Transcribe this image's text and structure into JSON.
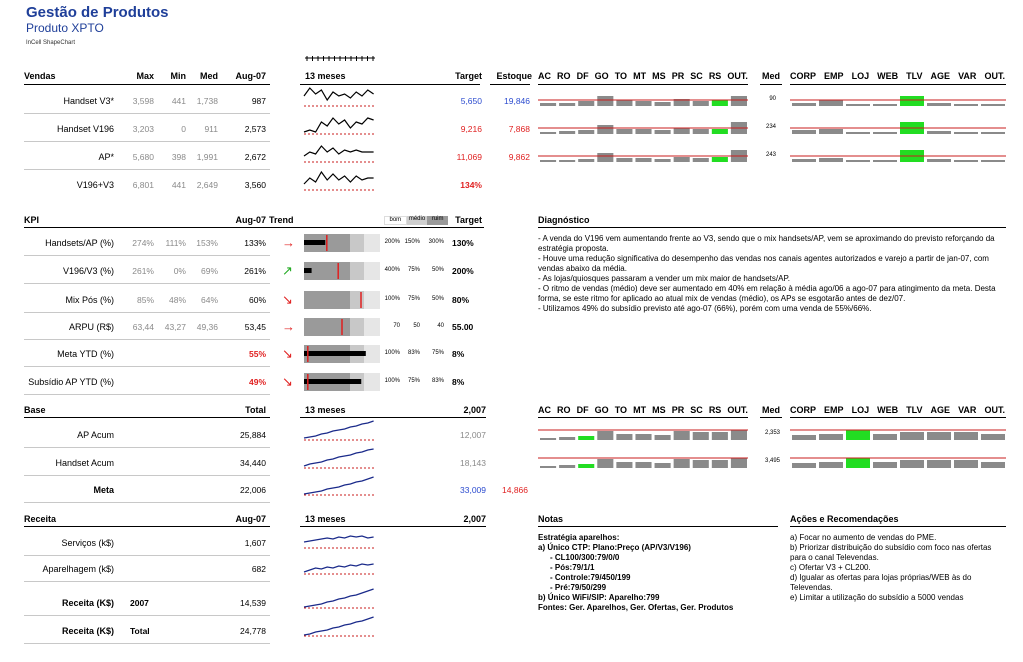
{
  "header": {
    "title": "Gestão de Produtos",
    "subtitle": "Produto XPTO",
    "small": "InCell ShapeChart"
  },
  "vendas": {
    "header": {
      "label": "Vendas",
      "max": "Max",
      "min": "Min",
      "med": "Med",
      "month": "Aug-07",
      "meses": "13 meses",
      "target": "Target",
      "estoque": "Estoque",
      "med2": "Med"
    },
    "states": [
      "AC",
      "RO",
      "DF",
      "GO",
      "TO",
      "MT",
      "MS",
      "PR",
      "SC",
      "RS",
      "OUT."
    ],
    "channels": [
      "CORP",
      "EMP",
      "LOJ",
      "WEB",
      "TLV",
      "AGE",
      "VAR",
      "OUT."
    ],
    "rows": [
      {
        "label": "Handset V3*",
        "max": "3,598",
        "min": "441",
        "med": "1,738",
        "month": "987",
        "target": "5,650",
        "estoque": "19,846",
        "med2": "90"
      },
      {
        "label": "Handset V196",
        "max": "3,203",
        "min": "0",
        "med": "911",
        "month": "2,573",
        "target": "9,216",
        "estoque": "7,868",
        "med2": "234"
      },
      {
        "label": "AP*",
        "max": "5,680",
        "min": "398",
        "med": "1,991",
        "month": "2,672",
        "target": "11,069",
        "estoque": "9,862",
        "med2": "243"
      },
      {
        "label": "V196+V3",
        "max": "6,801",
        "min": "441",
        "med": "2,649",
        "month": "3,560",
        "target": "134%",
        "estoque": "",
        "med2": ""
      }
    ]
  },
  "kpi": {
    "header": {
      "label": "KPI",
      "month": "Aug-07",
      "trend": "Trend",
      "bom": "bom",
      "medio": "médio",
      "ruim": "ruim",
      "target": "Target",
      "diag": "Diagnóstico"
    },
    "rows": [
      {
        "label": "Handsets/AP (%)",
        "max": "274%",
        "min": "111%",
        "med": "153%",
        "month": "133%",
        "t1": "200%",
        "t2": "150%",
        "t3": "300%",
        "target": "130%",
        "dir": "right",
        "bar": 0.28,
        "mark": 0.3
      },
      {
        "label": "V196/V3 (%)",
        "max": "261%",
        "min": "0%",
        "med": "69%",
        "month": "261%",
        "t1": "400%",
        "t2": "75%",
        "t3": "50%",
        "target": "200%",
        "dir": "up",
        "bar": 0.1,
        "mark": 0.45
      },
      {
        "label": "Mix Pós (%)",
        "max": "85%",
        "min": "48%",
        "med": "64%",
        "month": "60%",
        "t1": "100%",
        "t2": "75%",
        "t3": "50%",
        "target": "80%",
        "dir": "down",
        "bar": 0.0,
        "mark": 0.75
      },
      {
        "label": "ARPU (R$)",
        "max": "63,44",
        "min": "43,27",
        "med": "49,36",
        "month": "53,45",
        "t1": "70",
        "t2": "50",
        "t3": "40",
        "target": "55.00",
        "dir": "right",
        "bar": 0.0,
        "mark": 0.5
      },
      {
        "label": "Meta YTD (%)",
        "max": "",
        "min": "",
        "med": "",
        "month": "55%",
        "t1": "100%",
        "t2": "83%",
        "t3": "75%",
        "target": "8%",
        "dir": "down",
        "bar": 0.55,
        "mark": 0.05
      },
      {
        "label": "Subsídio AP YTD (%)",
        "max": "",
        "min": "",
        "med": "",
        "month": "49%",
        "t1": "100%",
        "t2": "75%",
        "t3": "83%",
        "target": "8%",
        "dir": "down",
        "bar": 0.49,
        "mark": 0.05
      }
    ],
    "diagnostico": [
      "- A venda do V196 vem aumentando frente ao V3, sendo que o mix handsets/AP, vem se aproximando do previsto reforçando da estratégia proposta.",
      "- Houve uma redução significativa do desempenho das vendas nos canais agentes autorizados e varejo a partir de jan-07, com vendas abaixo da média.",
      "- As lojas/quiosques passaram a vender um mix maior de handsets/AP.",
      "- O ritmo de vendas (médio) deve ser aumentado em 40% em relação à média ago/06 a ago-07 para atingimento da meta. Desta forma, se este ritmo for aplicado ao atual mix de vendas (médio), os APs se esgotarão antes de dez/07.",
      "- Utilizamos 49% do subsídio previsto até ago-07 (66%), porém com uma venda de 55%/66%."
    ]
  },
  "base": {
    "header": {
      "label": "Base",
      "total": "Total",
      "meses": "13 meses",
      "year": "2,007",
      "med2": "Med"
    },
    "rows": [
      {
        "label": "AP Acum",
        "total": "25,884",
        "year": "12,007",
        "extra": "",
        "med2": "2,353"
      },
      {
        "label": "Handset Acum",
        "total": "34,440",
        "year": "18,143",
        "extra": "",
        "med2": "3,495"
      },
      {
        "label": "Meta",
        "total": "22,006",
        "year": "33,009",
        "extra": "14,866",
        "med2": ""
      }
    ]
  },
  "receita": {
    "header": {
      "label": "Receita",
      "month": "Aug-07",
      "meses": "13 meses",
      "year": "2,007",
      "notas": "Notas",
      "acoes": "Ações e Recomendações"
    },
    "rows": [
      {
        "label": "Serviços (k$)",
        "col": "",
        "value": "1,607"
      },
      {
        "label": "Aparelhagem (k$)",
        "col": "",
        "value": "682"
      },
      {
        "label": "Receita (K$)",
        "col": "2007",
        "value": "14,539"
      },
      {
        "label": "Receita (K$)",
        "col": "Total",
        "value": "24,778"
      }
    ],
    "notas": [
      "Estratégia aparelhos:",
      "a) Único CTP: Plano:Preço (AP/V3/V196)",
      "- CL100/300:79/0/0",
      "- Pós:79/1/1",
      "- Controle:79/450/199",
      "- Pré:79/50/299",
      "b) Único WiFi/SIP: Aparelho:799",
      "Fontes: Ger. Aparelhos, Ger. Ofertas, Ger. Produtos"
    ],
    "acoes": [
      "a) Focar no aumento de vendas do PME.",
      "b) Priorizar distribuição do subsídio com foco nas ofertas para o canal Televendas.",
      "c) Ofertar V3 + CL200.",
      "d) Igualar as ofertas para lojas próprias/WEB às do Televendas.",
      "e) Limitar a utilização do subsídio a 5000 vendas"
    ]
  },
  "colors": {
    "title": "#1f3f99",
    "blue": "#2b4bcf",
    "red": "#e02020",
    "green": "#22dd22",
    "gray": "#8a8a8a"
  }
}
